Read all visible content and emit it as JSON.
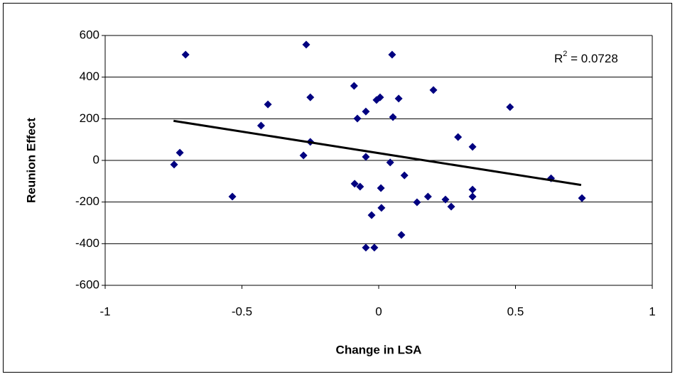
{
  "chart_data": {
    "type": "scatter",
    "x_label": "Change in LSA",
    "y_label": "Reunion Effect",
    "annotation": {
      "base": "R",
      "sup": "2",
      "rest": " = 0.0728"
    },
    "series": [
      {
        "color": "#000080",
        "x": [
          -0.706,
          -0.265,
          0.049,
          0.2,
          -0.09,
          -0.25,
          -0.405,
          -0.43,
          0.005,
          -0.008,
          0.073,
          -0.047,
          -0.078,
          0.052,
          0.48,
          0.29,
          0.343,
          -0.25,
          -0.275,
          -0.047,
          -0.727,
          -0.748,
          0.042,
          0.094,
          -0.535,
          -0.088,
          -0.068,
          0.008,
          0.343,
          0.343,
          0.18,
          0.14,
          0.244,
          0.265,
          0.01,
          -0.026,
          0.083,
          -0.047,
          -0.016,
          0.63,
          0.743
        ],
        "values": [
          508,
          556,
          508,
          338,
          358,
          303,
          269,
          167,
          303,
          290,
          297,
          235,
          201,
          208,
          256,
          112,
          65,
          89,
          24,
          17,
          37,
          -20,
          -10,
          -72,
          -174,
          -112,
          -126,
          -133,
          -140,
          -174,
          -174,
          -201,
          -188,
          -222,
          -228,
          -263,
          -358,
          -419,
          -419,
          -86,
          -181
        ]
      }
    ],
    "trendline": {
      "color": "#000000",
      "x": [
        -0.75,
        0.74
      ],
      "values": [
        190,
        -118
      ]
    },
    "xlim": [
      -1,
      1
    ],
    "xticks": [
      -1,
      -0.5,
      0,
      0.5,
      1
    ],
    "ylim": [
      -600,
      600
    ],
    "yticks": [
      -600,
      -400,
      -200,
      0,
      200,
      400,
      600
    ],
    "grid": true
  }
}
